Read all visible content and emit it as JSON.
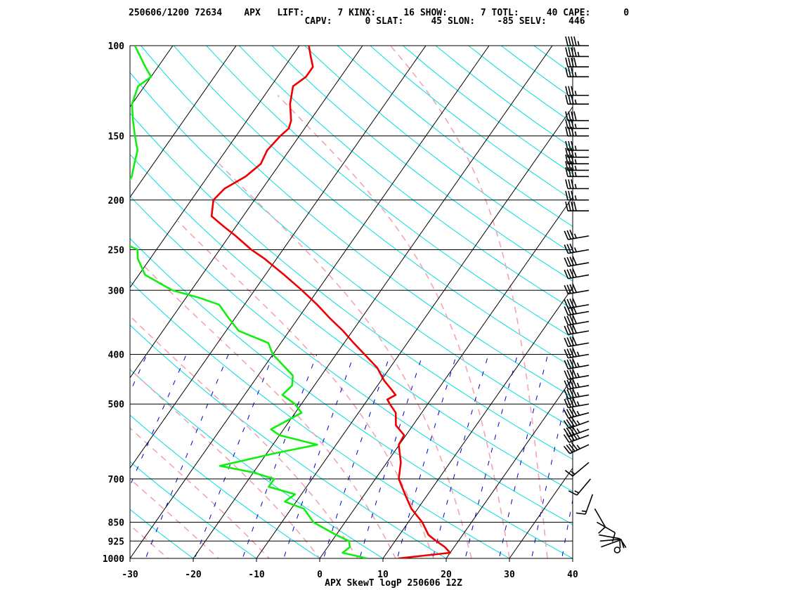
{
  "header": {
    "line1": "250606/1200 72634    APX   LIFT:      7 KINX:     16 SHOW:      7 TOTL:     40 CAPE:      0",
    "line2": "                                CAPV:      0 SLAT:     45 SLON:    -85 SELV:    446"
  },
  "chart_data": {
    "type": "line",
    "title": "",
    "xlabel": "APX SkewT logP 250606 12Z",
    "ylabel": "",
    "xlim": [
      -30,
      40
    ],
    "ylim": [
      1000,
      100
    ],
    "x_scale": "skewed",
    "y_scale": "log",
    "x_ticks": [
      "-30",
      "-20",
      "-10",
      "0",
      "10",
      "20",
      "30",
      "40"
    ],
    "y_ticks": [
      "100",
      "150",
      "200",
      "250",
      "300",
      "400",
      "500",
      "700",
      "850",
      "925",
      "1000"
    ],
    "colors": {
      "temperature": "#ee0000",
      "dewpoint": "#11ee11",
      "isotherm": "#000000",
      "dry_adiabat": "#00dddd",
      "moist_adiabat": "#f4a3b4",
      "mixing_ratio": "#0000cc",
      "wind_barb": "#000000"
    },
    "series": [
      {
        "id": "temperature",
        "points": [
          [
            1000,
            12.4
          ],
          [
            975,
            20.0
          ],
          [
            950,
            18.5
          ],
          [
            925,
            16.5
          ],
          [
            900,
            14.6
          ],
          [
            850,
            12.2
          ],
          [
            800,
            9.0
          ],
          [
            750,
            6.4
          ],
          [
            700,
            3.7
          ],
          [
            650,
            2.2
          ],
          [
            600,
            -0.1
          ],
          [
            575,
            -0.3
          ],
          [
            550,
            -2.7
          ],
          [
            520,
            -4.1
          ],
          [
            500,
            -6.0
          ],
          [
            490,
            -6.9
          ],
          [
            480,
            -6.1
          ],
          [
            470,
            -7.2
          ],
          [
            450,
            -9.5
          ],
          [
            425,
            -12.0
          ],
          [
            400,
            -15.5
          ],
          [
            380,
            -18.5
          ],
          [
            360,
            -21.5
          ],
          [
            340,
            -25.0
          ],
          [
            320,
            -28.5
          ],
          [
            300,
            -32.5
          ],
          [
            280,
            -37.0
          ],
          [
            260,
            -42.0
          ],
          [
            250,
            -45.0
          ],
          [
            235,
            -49.0
          ],
          [
            225,
            -52.0
          ],
          [
            215,
            -55.0
          ],
          [
            200,
            -56.5
          ],
          [
            190,
            -56.0
          ],
          [
            180,
            -54.0
          ],
          [
            170,
            -53.0
          ],
          [
            160,
            -53.5
          ],
          [
            150,
            -53.0
          ],
          [
            145,
            -52.5
          ],
          [
            140,
            -53.0
          ],
          [
            130,
            -55.0
          ],
          [
            120,
            -56.5
          ],
          [
            115,
            -55.5
          ],
          [
            110,
            -55.5
          ],
          [
            105,
            -57.0
          ],
          [
            100,
            -58.5
          ]
        ]
      },
      {
        "id": "dewpoint",
        "points": [
          [
            1000,
            7.5
          ],
          [
            975,
            3.0
          ],
          [
            950,
            3.5
          ],
          [
            925,
            2.7
          ],
          [
            900,
            0.0
          ],
          [
            850,
            -5.0
          ],
          [
            800,
            -8.0
          ],
          [
            775,
            -11.8
          ],
          [
            750,
            -11.0
          ],
          [
            725,
            -16.0
          ],
          [
            700,
            -16.0
          ],
          [
            680,
            -20.0
          ],
          [
            660,
            -26.0
          ],
          [
            625,
            -19.0
          ],
          [
            600,
            -13.0
          ],
          [
            575,
            -20.0
          ],
          [
            560,
            -22.0
          ],
          [
            520,
            -19.0
          ],
          [
            500,
            -21.0
          ],
          [
            480,
            -24.0
          ],
          [
            460,
            -23.5
          ],
          [
            440,
            -24.5
          ],
          [
            400,
            -30.0
          ],
          [
            380,
            -32.0
          ],
          [
            360,
            -38.0
          ],
          [
            340,
            -41.0
          ],
          [
            320,
            -44.0
          ],
          [
            310,
            -48.0
          ],
          [
            300,
            -53.0
          ],
          [
            280,
            -59.0
          ],
          [
            260,
            -62.0
          ],
          [
            250,
            -63.0
          ],
          [
            240,
            -67.0
          ],
          [
            225,
            -69.0
          ],
          [
            215,
            -70.0
          ],
          [
            205,
            -71.0
          ],
          [
            200,
            -72.0
          ],
          [
            195,
            -72.0
          ],
          [
            180,
            -72.0
          ],
          [
            170,
            -73.0
          ],
          [
            160,
            -74.0
          ],
          [
            150,
            -76.0
          ],
          [
            140,
            -78.0
          ],
          [
            130,
            -80.0
          ],
          [
            120,
            -81.0
          ],
          [
            115,
            -80.0
          ],
          [
            110,
            -82.0
          ],
          [
            100,
            -86.0
          ]
        ]
      }
    ],
    "winds_kt": [
      [
        1000,
        0,
        0
      ],
      [
        950,
        70,
        10
      ],
      [
        925,
        85,
        12
      ],
      [
        900,
        100,
        10
      ],
      [
        850,
        120,
        10
      ],
      [
        800,
        150,
        10
      ],
      [
        750,
        200,
        15
      ],
      [
        700,
        220,
        15
      ],
      [
        650,
        230,
        15
      ],
      [
        600,
        245,
        45
      ],
      [
        575,
        250,
        45
      ],
      [
        560,
        250,
        45
      ],
      [
        540,
        250,
        45
      ],
      [
        520,
        255,
        45
      ],
      [
        500,
        260,
        45
      ],
      [
        480,
        260,
        45
      ],
      [
        460,
        260,
        45
      ],
      [
        440,
        260,
        45
      ],
      [
        420,
        260,
        45
      ],
      [
        400,
        260,
        45
      ],
      [
        380,
        260,
        40
      ],
      [
        360,
        260,
        40
      ],
      [
        345,
        260,
        40
      ],
      [
        330,
        260,
        40
      ],
      [
        320,
        260,
        40
      ],
      [
        300,
        260,
        40
      ],
      [
        280,
        260,
        40
      ],
      [
        265,
        260,
        40
      ],
      [
        250,
        260,
        35
      ],
      [
        235,
        260,
        35
      ],
      [
        210,
        270,
        40
      ],
      [
        200,
        270,
        35
      ],
      [
        190,
        270,
        35
      ],
      [
        180,
        270,
        35
      ],
      [
        175,
        270,
        35
      ],
      [
        170,
        270,
        35
      ],
      [
        165,
        270,
        35
      ],
      [
        160,
        270,
        35
      ],
      [
        150,
        270,
        35
      ],
      [
        145,
        270,
        35
      ],
      [
        140,
        270,
        40
      ],
      [
        130,
        270,
        35
      ],
      [
        125,
        270,
        35
      ],
      [
        115,
        270,
        35
      ],
      [
        110,
        270,
        40
      ],
      [
        105,
        270,
        45
      ],
      [
        100,
        270,
        45
      ]
    ]
  }
}
